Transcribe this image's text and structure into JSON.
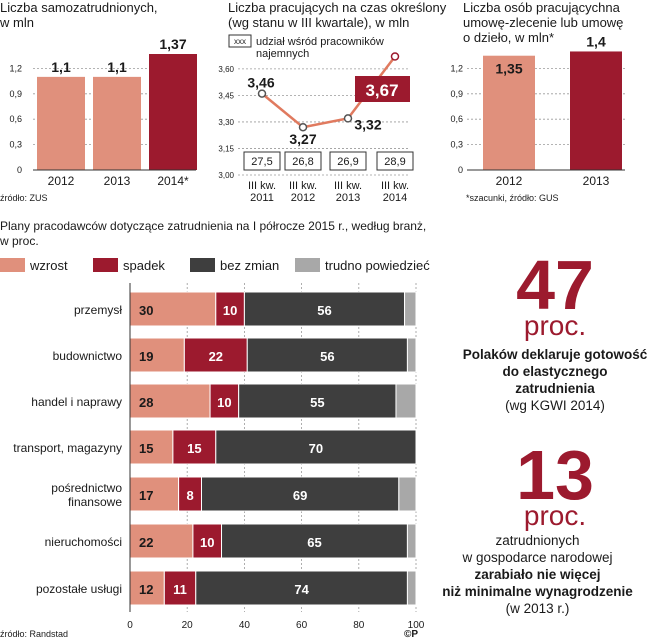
{
  "colors": {
    "salmon": "#e0907c",
    "dark_red": "#9c1a2e",
    "dark_gray": "#3e3e3e",
    "light_gray": "#a8a8a8",
    "line_orange": "#e07a5f"
  },
  "chart_data": [
    {
      "id": "self_employed",
      "type": "bar",
      "title": "Liczba samozatrudnionych,",
      "subtitle": "w mln",
      "categories": [
        "2012",
        "2013",
        "2014*"
      ],
      "values": [
        1.1,
        1.1,
        1.37
      ],
      "value_labels": [
        "1,1",
        "1,1",
        "1,37"
      ],
      "ylim": [
        0,
        1.5
      ],
      "yticks": [
        0,
        0.3,
        0.6,
        0.9,
        1.2
      ],
      "ytick_labels": [
        "0",
        "0,3",
        "0,6",
        "0,9",
        "1,2"
      ],
      "source": "źródło: ZUS"
    },
    {
      "id": "fixed_term",
      "type": "line",
      "title": "Liczba pracujących na czas określony",
      "subtitle": "(wg stanu w III kwartale), w mln",
      "legend_box": "xxx",
      "legend_text_1": "udział wśród pracowników",
      "legend_text_2": "najemnych",
      "categories": [
        "III kw. 2011",
        "III kw. 2012",
        "III kw. 2013",
        "III kw. 2014"
      ],
      "category_line1": [
        "III kw.",
        "III kw.",
        "III kw.",
        "III kw."
      ],
      "category_line2": [
        "2011",
        "2012",
        "2013",
        "2014"
      ],
      "values": [
        3.46,
        3.27,
        3.32,
        3.67
      ],
      "value_labels": [
        "3,46",
        "3,27",
        "3,32",
        "3,67"
      ],
      "shares": [
        "27,5",
        "26,8",
        "26,9",
        "28,9"
      ],
      "ylim": [
        3.0,
        3.65
      ],
      "yticks": [
        3.0,
        3.15,
        3.3,
        3.45,
        3.6
      ],
      "ytick_labels": [
        "3,00",
        "3,15",
        "3,30",
        "3,45",
        "3,60"
      ]
    },
    {
      "id": "civil_contracts",
      "type": "bar",
      "title": "Liczba osób pracującycyhna",
      "title_line1": "Liczba osób pracującychna",
      "title_line2": "umowę-zlecenie lub umowę",
      "title_line3": "o dzieło, w mln*",
      "categories": [
        "2012",
        "2013"
      ],
      "values": [
        1.35,
        1.4
      ],
      "value_labels": [
        "1,35",
        "1,4"
      ],
      "ylim": [
        0,
        1.5
      ],
      "yticks": [
        0,
        0.3,
        0.6,
        0.9,
        1.2
      ],
      "ytick_labels": [
        "0",
        "0,3",
        "0,6",
        "0,9",
        "1,2"
      ],
      "source": "*szacunki, źródło: GUS"
    },
    {
      "id": "employer_plans",
      "type": "bar",
      "orientation": "horizontal",
      "stacked": true,
      "title_line1": "Plany pracodawców dotyczące zatrudnienia na I półrocze 2015 r., według branż,",
      "title_line2": "w proc.",
      "categories": [
        "przemysł",
        "budownictwo",
        "handel i naprawy",
        "transport, magazyny",
        "pośrednictwo finansowe",
        "nieruchomości",
        "pozostałe usługi"
      ],
      "category_line1": [
        "przemysł",
        "budownictwo",
        "handel i naprawy",
        "transport, magazyny",
        "pośrednictwo",
        "nieruchomości",
        "pozostałe usługi"
      ],
      "category_line2": [
        "",
        "",
        "",
        "",
        "finansowe",
        "",
        ""
      ],
      "series": [
        {
          "name": "wzrost",
          "values": [
            30,
            19,
            28,
            15,
            17,
            22,
            12
          ]
        },
        {
          "name": "spadek",
          "values": [
            10,
            22,
            10,
            15,
            8,
            10,
            11
          ]
        },
        {
          "name": "bez zmian",
          "values": [
            56,
            56,
            55,
            70,
            69,
            65,
            74
          ]
        },
        {
          "name": "trudno powiedzieć",
          "values": [
            4,
            3,
            7,
            0,
            6,
            3,
            3
          ]
        }
      ],
      "xlim": [
        0,
        100
      ],
      "xticks": [
        0,
        20,
        40,
        60,
        80,
        100
      ],
      "xtick_labels": [
        "0",
        "20",
        "40",
        "60",
        "80",
        "100"
      ],
      "source": "źródło: Randstad"
    }
  ],
  "stat1": {
    "number": "47",
    "unit": "proc.",
    "line1": "Polaków deklaruje gotowość",
    "line2": "do elastycznego",
    "line3": "zatrudnienia",
    "line4": "(wg KGWI 2014)"
  },
  "stat2": {
    "number": "13",
    "unit": "proc.",
    "line1": "zatrudnionych",
    "line2": "w gospodarce narodowej",
    "line3": "zarabiało nie więcej",
    "line4": "niż minimalne wynagrodzenie",
    "line5": "(w 2013 r.)"
  },
  "credit": "©P"
}
